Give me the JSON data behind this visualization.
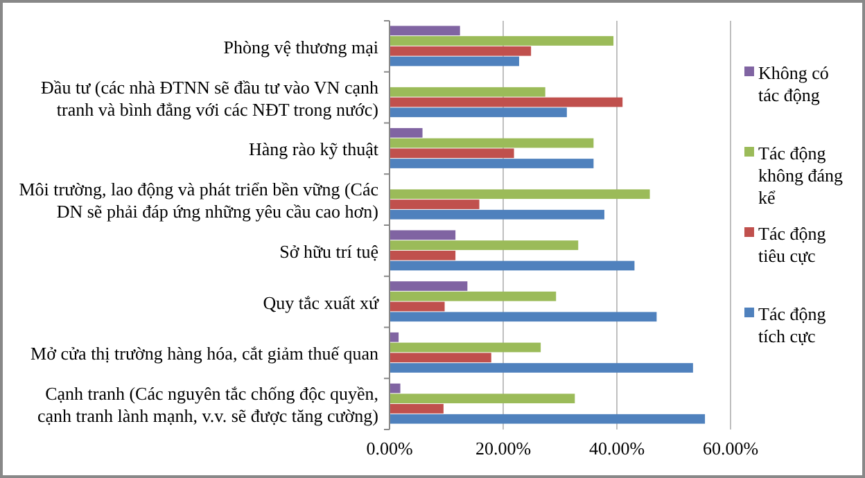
{
  "chart_data": {
    "type": "bar",
    "orientation": "horizontal",
    "categories": [
      "Phòng vệ thương mại",
      "Đầu tư (các nhà ĐTNN sẽ đầu tư vào VN cạnh tranh và bình đẳng với các NĐT trong nước)",
      "Hàng rào kỹ thuật",
      "Môi trường, lao động và phát triển bền vững (Các DN sẽ phải đáp ứng những yêu cầu cao hơn)",
      "Sở hữu trí tuệ",
      "Quy tắc xuất xứ",
      "Mở cửa thị trường hàng hóa, cắt giảm thuế quan",
      "Cạnh tranh (Các nguyên tắc chống độc quyền, cạnh tranh lành mạnh, v.v. sẽ được tăng cường)"
    ],
    "series": [
      {
        "name": "Không có tác động",
        "color": "#8064a2",
        "values": [
          12.4,
          0,
          5.8,
          0,
          11.6,
          13.7,
          1.6,
          1.9
        ]
      },
      {
        "name": "Tác động không đáng kể",
        "color": "#9bbb59",
        "values": [
          39.4,
          27.4,
          35.9,
          45.8,
          33.2,
          29.3,
          26.6,
          32.6
        ]
      },
      {
        "name": "Tác động tiêu cực",
        "color": "#c0504d",
        "values": [
          24.9,
          41.0,
          21.9,
          15.8,
          11.6,
          9.7,
          17.9,
          9.5
        ]
      },
      {
        "name": "Tác động tích cực",
        "color": "#4f81bd",
        "values": [
          22.8,
          31.2,
          35.9,
          37.8,
          43.1,
          47.0,
          53.4,
          55.5
        ]
      }
    ],
    "xlim": [
      0,
      60
    ],
    "xticks": [
      {
        "value": 0,
        "label": "0.00%"
      },
      {
        "value": 20,
        "label": "20.00%"
      },
      {
        "value": 40,
        "label": "40.00%"
      },
      {
        "value": 60,
        "label": "60.00%"
      }
    ],
    "grid": "x",
    "legend": "right"
  }
}
